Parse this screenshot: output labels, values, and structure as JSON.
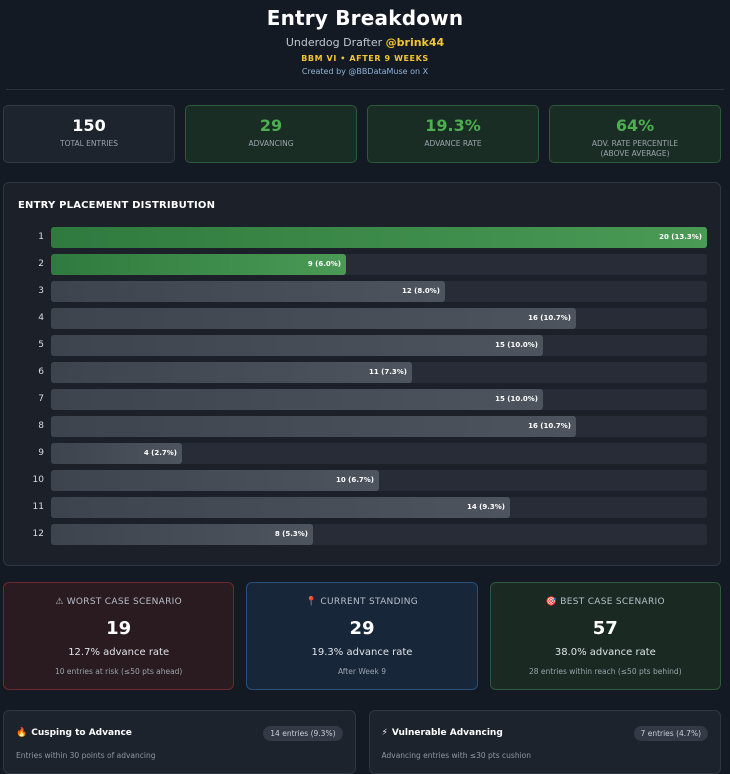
{
  "header": {
    "title": "Entry Breakdown",
    "drafter_prefix": "Underdog Drafter",
    "handle": "@brink44",
    "season": "BBM VI • AFTER 9 WEEKS",
    "credit": "Created by @BBDataMuse on X"
  },
  "stats": [
    {
      "value": "150",
      "label": "TOTAL ENTRIES",
      "style": "plain"
    },
    {
      "value": "29",
      "label": "ADVANCING",
      "style": "green"
    },
    {
      "value": "19.3%",
      "label": "ADVANCE RATE",
      "style": "green"
    },
    {
      "value": "64%",
      "label": "ADV. RATE PERCENTILE\n(ABOVE AVERAGE)",
      "style": "green"
    }
  ],
  "chart_data": {
    "type": "bar",
    "orientation": "horizontal",
    "title": "ENTRY PLACEMENT DISTRIBUTION",
    "categories": [
      "1",
      "2",
      "3",
      "4",
      "5",
      "6",
      "7",
      "8",
      "9",
      "10",
      "11",
      "12"
    ],
    "values": [
      20,
      9,
      12,
      16,
      15,
      11,
      15,
      16,
      4,
      10,
      14,
      8
    ],
    "labels": [
      "20 (13.3%)",
      "9 (6.0%)",
      "12 (8.0%)",
      "16 (10.7%)",
      "15 (10.0%)",
      "11 (7.3%)",
      "15 (10.0%)",
      "16 (10.7%)",
      "4 (2.7%)",
      "10 (6.7%)",
      "14 (9.3%)",
      "8 (5.3%)"
    ],
    "highlight": [
      "green",
      "green",
      "grey",
      "grey",
      "grey",
      "grey",
      "grey",
      "grey",
      "grey",
      "grey",
      "grey",
      "grey"
    ],
    "xlim": [
      0,
      20
    ]
  },
  "scenarios": {
    "worst": {
      "icon": "warning-icon",
      "glyph": "⚠",
      "title": "WORST CASE SCENARIO",
      "value": "19",
      "rate": "12.7% advance rate",
      "note": "10 entries at risk (≤50 pts ahead)"
    },
    "current": {
      "icon": "pin-icon",
      "glyph": "📍",
      "title": "CURRENT STANDING",
      "value": "29",
      "rate": "19.3% advance rate",
      "note": "After Week 9"
    },
    "best": {
      "icon": "target-icon",
      "glyph": "🎯",
      "title": "BEST CASE SCENARIO",
      "value": "57",
      "rate": "38.0% advance rate",
      "note": "28 entries within reach (≤50 pts behind)"
    }
  },
  "footer": {
    "cusping": {
      "icon": "fire-icon",
      "glyph": "🔥",
      "title": "Cusping to Advance",
      "badge": "14 entries (9.3%)",
      "desc": "Entries within 30 points of advancing"
    },
    "vulnerable": {
      "icon": "lightning-icon",
      "glyph": "⚡",
      "title": "Vulnerable Advancing",
      "badge": "7 entries (4.7%)",
      "desc": "Advancing entries with ≤30 pts cushion"
    }
  }
}
